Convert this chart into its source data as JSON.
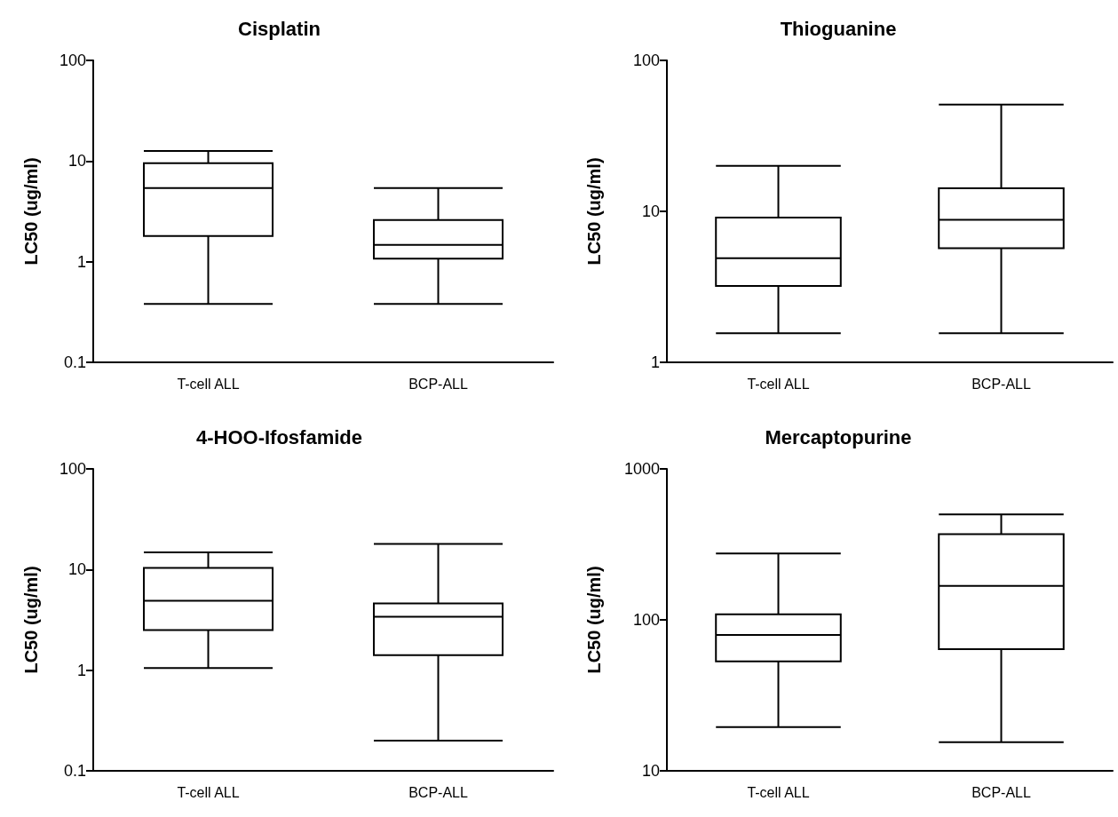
{
  "chart_data": [
    {
      "type": "box",
      "title": "Cisplatin",
      "ylabel": "LC50 (ug/ml)",
      "categories": [
        "T-cell ALL",
        "BCP-ALL"
      ],
      "color": "#000000",
      "log": true,
      "grid": false,
      "ylim": [
        0.1,
        100
      ],
      "yticks": [
        0.1,
        1,
        10,
        100
      ],
      "boxes": [
        {
          "low": 0.38,
          "q1": 1.8,
          "median": 5.4,
          "q3": 9.5,
          "high": 12.6
        },
        {
          "low": 0.38,
          "q1": 1.07,
          "median": 1.47,
          "q3": 2.6,
          "high": 5.4
        }
      ]
    },
    {
      "type": "box",
      "title": "Thioguanine",
      "ylabel": "LC50 (ug/ml)",
      "categories": [
        "T-cell ALL",
        "BCP-ALL"
      ],
      "color": "#000000",
      "log": true,
      "grid": false,
      "ylim": [
        1,
        100
      ],
      "yticks": [
        1,
        10,
        100
      ],
      "boxes": [
        {
          "low": 1.56,
          "q1": 3.2,
          "median": 4.9,
          "q3": 9.1,
          "high": 20
        },
        {
          "low": 1.56,
          "q1": 5.7,
          "median": 8.8,
          "q3": 14.2,
          "high": 51
        }
      ]
    },
    {
      "type": "box",
      "title": "4-HOO-Ifosfamide",
      "ylabel": "LC50 (ug/ml)",
      "categories": [
        "T-cell ALL",
        "BCP-ALL"
      ],
      "color": "#000000",
      "log": true,
      "grid": false,
      "ylim": [
        0.1,
        100
      ],
      "yticks": [
        0.1,
        1,
        10,
        100
      ],
      "boxes": [
        {
          "low": 1.05,
          "q1": 2.5,
          "median": 4.9,
          "q3": 10.4,
          "high": 14.8
        },
        {
          "low": 0.2,
          "q1": 1.41,
          "median": 3.4,
          "q3": 4.6,
          "high": 18
        }
      ]
    },
    {
      "type": "box",
      "title": "Mercaptopurine",
      "ylabel": "LC50 (ug/ml)",
      "categories": [
        "T-cell ALL",
        "BCP-ALL"
      ],
      "color": "#000000",
      "log": true,
      "grid": false,
      "ylim": [
        10,
        1000
      ],
      "yticks": [
        10,
        100,
        1000
      ],
      "boxes": [
        {
          "low": 19.5,
          "q1": 53,
          "median": 79.5,
          "q3": 109,
          "high": 275
        },
        {
          "low": 15.5,
          "q1": 64,
          "median": 168,
          "q3": 370,
          "high": 500
        }
      ]
    }
  ]
}
